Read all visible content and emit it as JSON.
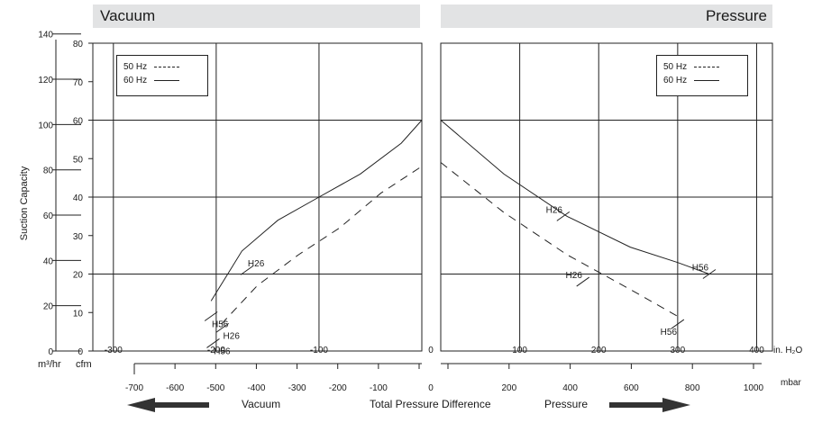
{
  "headers": {
    "left": "Vacuum",
    "right": "Pressure"
  },
  "legends": [
    {
      "items": [
        {
          "label": "50 Hz",
          "style": "dashed"
        },
        {
          "label": "60 Hz",
          "style": "solid"
        }
      ]
    },
    {
      "items": [
        {
          "label": "50 Hz",
          "style": "dashed"
        },
        {
          "label": "60 Hz",
          "style": "solid"
        }
      ]
    }
  ],
  "footer": {
    "vacuum": "Vacuum",
    "center": "Total Pressure Difference",
    "pressure": "Pressure"
  },
  "chart_data": [
    {
      "type": "line",
      "panel": "Vacuum",
      "ylabel": "Suction Capacity",
      "y_units": [
        "m³/hr",
        "cfm"
      ],
      "x_units": [
        "in. H₂O",
        "mbar"
      ],
      "xlim_inH2O": [
        -320,
        0
      ],
      "ylim_cfm": [
        0,
        80
      ],
      "grid": true,
      "x_ticks_inH2O": [
        -300,
        -200,
        -100
      ],
      "x_ticks_mbar": [
        -700,
        -600,
        -500,
        -400,
        -300,
        -200,
        -100,
        0
      ],
      "y_ticks_cfm": [
        0,
        10,
        20,
        30,
        40,
        50,
        60,
        70,
        80
      ],
      "y_ticks_m3hr": [
        0,
        20,
        40,
        60,
        80,
        100,
        120,
        140
      ],
      "series": [
        {
          "name": "60 Hz",
          "style": "solid",
          "points": [
            [
              -205,
              13
            ],
            [
              -175,
              26
            ],
            [
              -140,
              34
            ],
            [
              -100,
              40
            ],
            [
              -60,
              46
            ],
            [
              -20,
              54
            ],
            [
              0,
              60
            ]
          ]
        },
        {
          "name": "50 Hz",
          "style": "dashed",
          "points": [
            [
              -195,
              7
            ],
            [
              -160,
              17
            ],
            [
              -120,
              25
            ],
            [
              -80,
              32
            ],
            [
              -40,
              41
            ],
            [
              0,
              48
            ]
          ]
        }
      ],
      "annotations": [
        {
          "text": "H26",
          "series": "60 Hz",
          "x": -170,
          "y": 21
        },
        {
          "text": "H56",
          "series": "60 Hz",
          "x": -205,
          "y": 9
        },
        {
          "text": "H26",
          "series": "50 Hz",
          "x": -194,
          "y": 6
        },
        {
          "text": "H56",
          "series": "50 Hz",
          "x": -203,
          "y": 2
        }
      ]
    },
    {
      "type": "line",
      "panel": "Pressure",
      "x_units": [
        "in. H₂O",
        "mbar"
      ],
      "xlim_inH2O": [
        0,
        420
      ],
      "ylim_cfm": [
        0,
        80
      ],
      "grid": true,
      "x_ticks_inH2O": [
        0,
        100,
        200,
        300,
        400
      ],
      "x_ticks_mbar": [
        0,
        200,
        400,
        600,
        800,
        1000
      ],
      "series": [
        {
          "name": "60 Hz",
          "style": "solid",
          "points": [
            [
              0,
              60
            ],
            [
              80,
              46
            ],
            [
              160,
              35
            ],
            [
              240,
              27
            ],
            [
              300,
              23
            ],
            [
              340,
              20
            ]
          ]
        },
        {
          "name": "50 Hz",
          "style": "dashed",
          "points": [
            [
              0,
              49
            ],
            [
              80,
              36
            ],
            [
              160,
              25
            ],
            [
              240,
              16
            ],
            [
              300,
              9
            ]
          ]
        }
      ],
      "annotations": [
        {
          "text": "H26",
          "series": "60 Hz",
          "x": 155,
          "y": 35
        },
        {
          "text": "H56",
          "series": "60 Hz",
          "x": 340,
          "y": 20
        },
        {
          "text": "H26",
          "series": "50 Hz",
          "x": 180,
          "y": 18
        },
        {
          "text": "H56",
          "series": "50 Hz",
          "x": 300,
          "y": 7
        }
      ]
    }
  ]
}
